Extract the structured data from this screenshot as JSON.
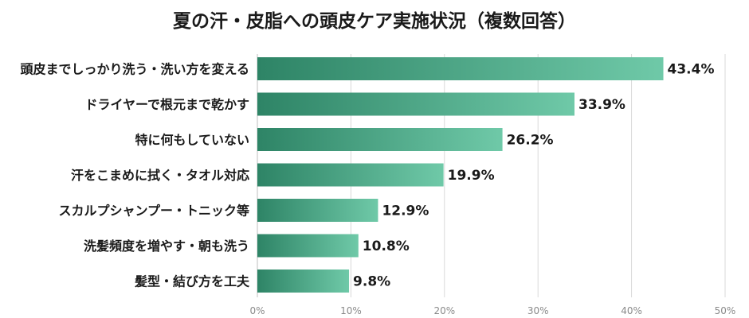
{
  "chart_data": {
    "type": "bar",
    "orientation": "horizontal",
    "title": "夏の汗・皮脂への頭皮ケア実施状況（複数回答）",
    "categories": [
      "頭皮までしっかり洗う・洗い方を変える",
      "ドライヤーで根元まで乾かす",
      "特に何もしていない",
      "汗をこまめに拭く・タオル対応",
      "スカルプシャンプー・トニック等",
      "洗髪頻度を増やす・朝も洗う",
      "髪型・結び方を工夫"
    ],
    "values": [
      43.4,
      33.9,
      26.2,
      19.9,
      12.9,
      10.8,
      9.8
    ],
    "value_labels": [
      "43.4%",
      "33.9%",
      "26.2%",
      "19.9%",
      "12.9%",
      "10.8%",
      "9.8%"
    ],
    "xlim": [
      0,
      50
    ],
    "ticks": [
      0,
      10,
      20,
      30,
      40,
      50
    ],
    "tick_labels": [
      "0%",
      "10%",
      "20%",
      "30%",
      "40%",
      "50%"
    ],
    "grid": true,
    "colors": {
      "bar_dark": "#2e8466",
      "bar_light": "#6fc9a8"
    }
  }
}
